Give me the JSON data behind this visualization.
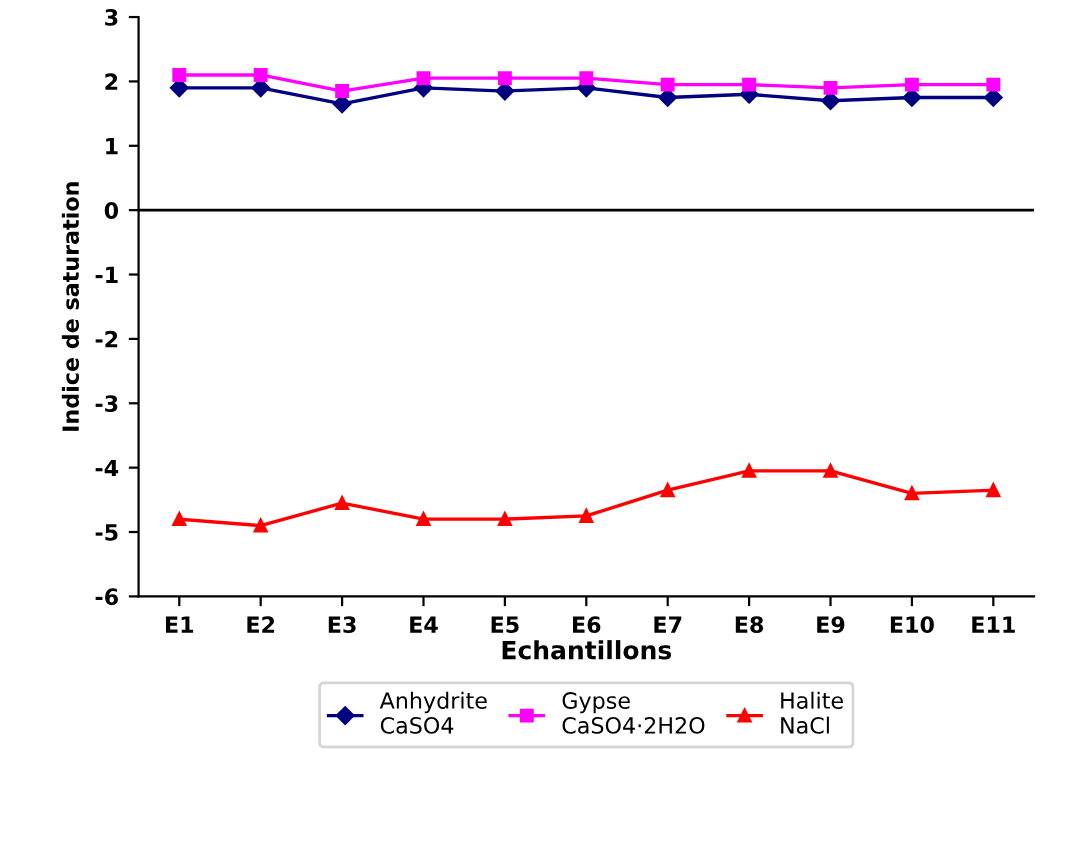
{
  "chart_data": {
    "type": "line",
    "xlabel": "Echantillons",
    "ylabel": "Indice de saturation",
    "categories": [
      "E1",
      "E2",
      "E3",
      "E4",
      "E5",
      "E6",
      "E7",
      "E8",
      "E9",
      "E10",
      "E11"
    ],
    "series": [
      {
        "name": "Anhydrite\nCaSO4",
        "color": "#000080",
        "marker": "diamond",
        "values": [
          1.9,
          1.9,
          1.65,
          1.9,
          1.85,
          1.9,
          1.75,
          1.8,
          1.7,
          1.75,
          1.75
        ]
      },
      {
        "name": "Gypse\nCaSO4·2H2O",
        "color": "#ff00ff",
        "marker": "square",
        "values": [
          2.1,
          2.1,
          1.85,
          2.05,
          2.05,
          2.05,
          1.95,
          1.95,
          1.9,
          1.95,
          1.95
        ]
      },
      {
        "name": "Halite\nNaCl",
        "color": "#ff0000",
        "marker": "triangle",
        "values": [
          -4.8,
          -4.9,
          -4.55,
          -4.8,
          -4.8,
          -4.75,
          -4.35,
          -4.05,
          -4.05,
          -4.4,
          -4.35
        ]
      }
    ],
    "ylim": [
      -6,
      3
    ],
    "yticks": [
      -6,
      -5,
      -4,
      -3,
      -2,
      -1,
      0,
      1,
      2,
      3
    ],
    "ref_lines": [
      {
        "axis": "y",
        "value": 0,
        "color": "#000000",
        "line_style": "solid"
      }
    ],
    "grid": false,
    "legend": "bottom",
    "line_style": "solid"
  }
}
